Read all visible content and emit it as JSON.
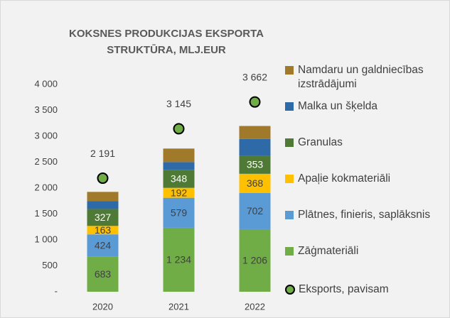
{
  "chart_data": {
    "type": "stacked_bar_with_total",
    "title": "KOKSNES PRODUKCIJAS EKSPORTA STRUKTŪRA, MLJ.EUR",
    "categories": [
      "2020",
      "2021",
      "2022"
    ],
    "ylim": [
      0,
      4000
    ],
    "yticks": [
      {
        "value": 0,
        "label": "-"
      },
      500,
      {
        "value": 1000,
        "label": "1 000"
      },
      {
        "value": 1500,
        "label": "1 500"
      },
      {
        "value": 2000,
        "label": "2 000"
      },
      {
        "value": 2500,
        "label": "2 500"
      },
      {
        "value": 3000,
        "label": "3 000"
      },
      {
        "value": 3500,
        "label": "3 500"
      },
      {
        "value": 4000,
        "label": "4 000"
      }
    ],
    "series": [
      {
        "name": "Zāģmateriāli",
        "color": "#70ad47",
        "label_color": "#404040",
        "values": [
          683,
          1234,
          1206
        ],
        "value_labels": [
          "683",
          "1 234",
          "1 206"
        ]
      },
      {
        "name": "Plātnes, finieris, saplāksnis",
        "color": "#5b9bd5",
        "label_color": "#404040",
        "values": [
          424,
          579,
          702
        ]
      },
      {
        "name": "Apaļie kokmateriāli",
        "color": "#ffc000",
        "label_color": "#404040",
        "values": [
          163,
          192,
          368
        ]
      },
      {
        "name": "Granulas",
        "color": "#4e7a35",
        "label_color": "#ffffff",
        "values": [
          327,
          348,
          353
        ]
      },
      {
        "name": "Malka un šķelda",
        "color": "#2e6aa8",
        "values": [
          150,
          150,
          320
        ]
      },
      {
        "name": "Namdaru un galdniecības izstrādājumi",
        "color": "#a07a2a",
        "values": [
          180,
          260,
          250
        ]
      }
    ],
    "total": {
      "name": "Eksports, pavisam",
      "color": "#70ad47",
      "values": [
        2191,
        3145,
        3662
      ],
      "value_labels": [
        "2 191",
        "3 145",
        "3 662"
      ]
    }
  }
}
